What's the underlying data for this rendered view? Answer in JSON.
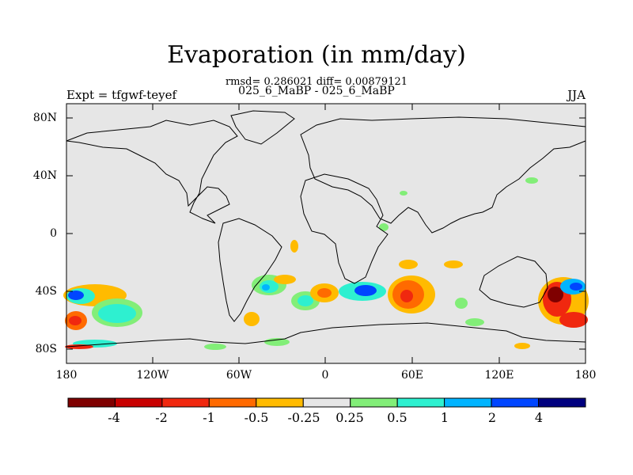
{
  "title": "Evaporation (in mm/day)",
  "stats_line": "rmsd= 0.286021 diff= 0.00879121",
  "subtitle": "025_6_MaBP - 025_6_MaBP",
  "left_label": "Expt = tfgwf-teyef",
  "right_label": "JJA",
  "y_axis_labels": [
    "80N",
    "40N",
    "0",
    "40S",
    "80S"
  ],
  "x_axis_labels": [
    "180",
    "120W",
    "60W",
    "0",
    "60E",
    "120E",
    "180"
  ],
  "colorbar": {
    "labels": [
      "-4",
      "-2",
      "-1",
      "-0.5",
      "-0.25",
      "0.25",
      "0.5",
      "1",
      "2",
      "4"
    ],
    "colors": [
      "#7f0000",
      "#c80000",
      "#f0280f",
      "#ff6a00",
      "#ffbb00",
      "#e6e6e6",
      "#82ee78",
      "#2ef0d0",
      "#00b4ff",
      "#0046ff",
      "#00007f"
    ]
  },
  "map_background": "#e6e6e6",
  "chart_data": {
    "type": "contour-map",
    "title": "Evaporation (in mm/day)",
    "variable": "Evaporation difference",
    "units": "mm/day",
    "season": "JJA",
    "x_range_lon": [
      -180,
      180
    ],
    "y_range_lat": [
      -90,
      90
    ],
    "contour_levels": [
      -4,
      -2,
      -1,
      -0.5,
      -0.25,
      0.25,
      0.5,
      1,
      2,
      4
    ]
  }
}
